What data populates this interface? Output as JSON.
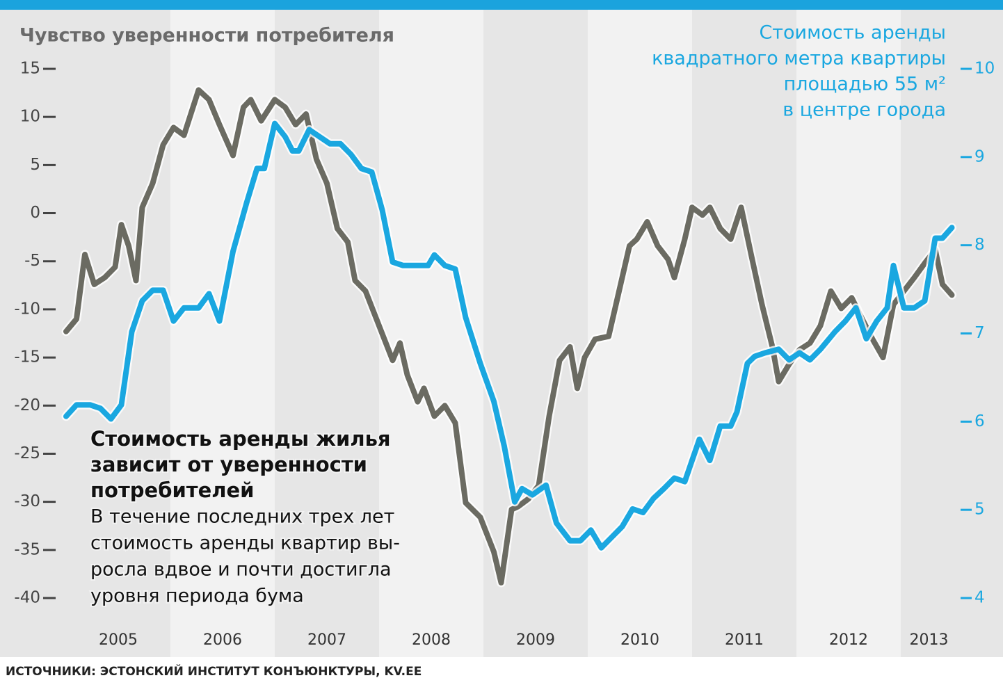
{
  "chart_data": {
    "type": "line",
    "title": "Чувство уверенности потребителя",
    "y2_title": [
      "Стоимость аренды",
      "квадратного метра квартиры",
      "площадью 55 м²",
      "в центре города"
    ],
    "annotation_title": [
      "Стоимость аренды жилья",
      "зависит от уверенности",
      "потребителей"
    ],
    "annotation_text": [
      "В течение последних трех лет",
      "стоимость аренды квартир вы-",
      "росла вдвое и почти достигла",
      "уровня периода бума"
    ],
    "source": "ИСТОЧНИКИ: ЭСТОНСКИЙ ИНСТИТУТ КОНЪЮНКТУРЫ, KV.EE",
    "xlim": [
      2005,
      2013.5
    ],
    "xticks": [
      {
        "value": 2005.5,
        "label": "2005"
      },
      {
        "value": 2006.5,
        "label": "2006"
      },
      {
        "value": 2007.5,
        "label": "2007"
      },
      {
        "value": 2008.5,
        "label": "2008"
      },
      {
        "value": 2009.5,
        "label": "2009"
      },
      {
        "value": 2010.5,
        "label": "2010"
      },
      {
        "value": 2011.5,
        "label": "2011"
      },
      {
        "value": 2012.5,
        "label": "2012"
      },
      {
        "value": 2013.27,
        "label": "2013"
      }
    ],
    "ylim": [
      -40,
      15
    ],
    "yticks": [
      15,
      10,
      5,
      0,
      -5,
      -10,
      -15,
      -20,
      -25,
      -30,
      -35,
      -40
    ],
    "y2lim": [
      4,
      10
    ],
    "y2ticks": [
      10,
      9,
      8,
      7,
      6,
      5,
      4
    ],
    "series": [
      {
        "color": "#6b6b62",
        "axis": "y",
        "x": [
          2005.0,
          2005.1,
          2005.18,
          2005.27,
          2005.37,
          2005.47,
          2005.53,
          2005.6,
          2005.67,
          2005.73,
          2005.83,
          2005.93,
          2006.03,
          2006.13,
          2006.27,
          2006.37,
          2006.47,
          2006.6,
          2006.7,
          2006.77,
          2006.87,
          2007.0,
          2007.1,
          2007.2,
          2007.3,
          2007.4,
          2007.5,
          2007.6,
          2007.7,
          2007.77,
          2007.87,
          2008.0,
          2008.13,
          2008.2,
          2008.27,
          2008.37,
          2008.43,
          2008.53,
          2008.63,
          2008.73,
          2008.83,
          2008.97,
          2009.1,
          2009.17,
          2009.27,
          2009.33,
          2009.43,
          2009.53,
          2009.63,
          2009.73,
          2009.83,
          2009.9,
          2009.97,
          2010.07,
          2010.2,
          2010.33,
          2010.4,
          2010.47,
          2010.57,
          2010.67,
          2010.77,
          2010.83,
          2010.93,
          2011.0,
          2011.1,
          2011.17,
          2011.27,
          2011.37,
          2011.47,
          2011.57,
          2011.67,
          2011.77,
          2011.83,
          2011.93,
          2012.03,
          2012.13,
          2012.23,
          2012.33,
          2012.43,
          2012.53,
          2012.63,
          2012.73,
          2012.83,
          2012.93,
          2013.03,
          2013.13,
          2013.23,
          2013.33,
          2013.4,
          2013.49
        ],
        "values": [
          -12.3,
          -11.0,
          -4.3,
          -7.4,
          -6.7,
          -5.6,
          -1.2,
          -3.4,
          -7.0,
          0.6,
          3.1,
          7.1,
          8.9,
          8.1,
          12.8,
          11.8,
          9.2,
          6.0,
          11.0,
          11.8,
          9.6,
          11.8,
          11.0,
          9.2,
          10.3,
          5.6,
          3.1,
          -1.6,
          -3.0,
          -7.0,
          -8.1,
          -11.7,
          -15.3,
          -13.5,
          -16.8,
          -19.6,
          -18.2,
          -21.1,
          -20.0,
          -21.8,
          -30.1,
          -31.6,
          -35.2,
          -38.4,
          -30.8,
          -30.5,
          -29.7,
          -28.3,
          -21.1,
          -15.3,
          -13.9,
          -18.2,
          -15.0,
          -13.1,
          -12.8,
          -6.7,
          -3.4,
          -2.7,
          -0.9,
          -3.4,
          -4.8,
          -6.7,
          -2.7,
          0.6,
          -0.2,
          0.6,
          -1.6,
          -2.7,
          0.6,
          -4.5,
          -9.5,
          -13.9,
          -17.5,
          -15.7,
          -14.2,
          -13.5,
          -11.7,
          -8.1,
          -9.9,
          -8.8,
          -11.0,
          -13.1,
          -15.0,
          -9.5,
          -8.1,
          -6.7,
          -5.2,
          -3.8,
          -7.4,
          -8.5
        ]
      },
      {
        "color": "#1aa7e0",
        "axis": "y2",
        "x": [
          2005.0,
          2005.1,
          2005.23,
          2005.33,
          2005.43,
          2005.53,
          2005.63,
          2005.73,
          2005.83,
          2005.93,
          2006.03,
          2006.13,
          2006.27,
          2006.37,
          2006.47,
          2006.6,
          2006.73,
          2006.83,
          2006.9,
          2007.0,
          2007.1,
          2007.17,
          2007.23,
          2007.33,
          2007.43,
          2007.53,
          2007.63,
          2007.73,
          2007.83,
          2007.93,
          2008.03,
          2008.13,
          2008.23,
          2008.37,
          2008.47,
          2008.53,
          2008.63,
          2008.73,
          2008.83,
          2008.97,
          2009.1,
          2009.2,
          2009.3,
          2009.37,
          2009.47,
          2009.6,
          2009.7,
          2009.83,
          2009.93,
          2010.03,
          2010.13,
          2010.23,
          2010.33,
          2010.43,
          2010.53,
          2010.63,
          2010.73,
          2010.83,
          2010.93,
          2011.0,
          2011.07,
          2011.17,
          2011.27,
          2011.37,
          2011.43,
          2011.53,
          2011.6,
          2011.7,
          2011.83,
          2011.93,
          2012.03,
          2012.13,
          2012.23,
          2012.37,
          2012.47,
          2012.57,
          2012.67,
          2012.77,
          2012.87,
          2012.93,
          2013.03,
          2013.13,
          2013.23,
          2013.33,
          2013.4,
          2013.49
        ],
        "values": [
          6.06,
          6.19,
          6.19,
          6.15,
          6.03,
          6.19,
          7.02,
          7.37,
          7.49,
          7.49,
          7.14,
          7.29,
          7.29,
          7.45,
          7.14,
          7.93,
          8.48,
          8.87,
          8.87,
          9.38,
          9.23,
          9.07,
          9.07,
          9.31,
          9.23,
          9.15,
          9.15,
          9.03,
          8.87,
          8.83,
          8.4,
          7.81,
          7.77,
          7.77,
          7.77,
          7.89,
          7.77,
          7.73,
          7.18,
          6.66,
          6.23,
          5.72,
          5.09,
          5.24,
          5.17,
          5.28,
          4.85,
          4.65,
          4.65,
          4.77,
          4.57,
          4.69,
          4.81,
          5.01,
          4.97,
          5.13,
          5.24,
          5.36,
          5.32,
          5.56,
          5.8,
          5.56,
          5.95,
          5.95,
          6.11,
          6.66,
          6.74,
          6.78,
          6.82,
          6.7,
          6.78,
          6.7,
          6.82,
          7.02,
          7.14,
          7.29,
          6.94,
          7.14,
          7.29,
          7.77,
          7.29,
          7.29,
          7.37,
          8.08,
          8.08,
          8.2
        ]
      }
    ]
  }
}
